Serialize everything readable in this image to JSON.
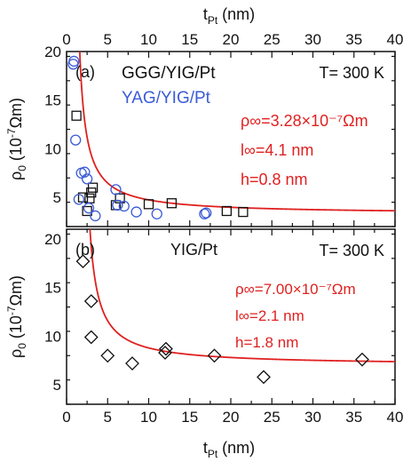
{
  "figure": {
    "top_axis_label": "t",
    "top_axis_label_sub": "Pt",
    "top_axis_label_unit": " (nm)",
    "bottom_axis_label": "t",
    "bottom_axis_label_sub": "Pt",
    "bottom_axis_label_unit": " (nm)"
  },
  "chart_data": [
    {
      "type": "scatter",
      "panel_label": "(a)",
      "temperature_label": "T= 300 K",
      "ylabel_main": "ρ",
      "ylabel_sub": "0",
      "ylabel_unit_pre": " (10",
      "ylabel_unit_exp": "-7",
      "ylabel_unit_post": "Ωm)",
      "xlim": [
        0,
        40
      ],
      "ylim": [
        2,
        20
      ],
      "xticks": [
        0,
        5,
        10,
        15,
        20,
        25,
        30,
        35,
        40
      ],
      "yticks": [
        5,
        10,
        15,
        20
      ],
      "fit_params": {
        "rho_inf_label": "ρ∞=3.28×10⁻⁷Ωm",
        "l_inf_label": "l∞=4.1 nm",
        "h_label": "h=0.8 nm",
        "rho_inf": 3.28,
        "l_inf": 4.1,
        "h": 0.8
      },
      "fit_color": "#e02020",
      "series": [
        {
          "name": "GGG/YIG/Pt",
          "marker": "square",
          "color": "#111111",
          "x": [
            1.2,
            2.0,
            2.5,
            2.8,
            3.0,
            3.2,
            6.0,
            6.5,
            10.0,
            12.8,
            19.5,
            21.5
          ],
          "y": [
            13.4,
            5.0,
            3.6,
            4.9,
            5.5,
            6.0,
            4.2,
            4.9,
            4.3,
            4.4,
            3.6,
            3.5
          ]
        },
        {
          "name": "YAG/YIG/Pt",
          "marker": "circle",
          "color": "#3b5bd6",
          "x": [
            0.8,
            0.9,
            1.1,
            1.5,
            1.8,
            2.2,
            2.5,
            2.7,
            3.5,
            6.0,
            6.2,
            7.0,
            8.5,
            11.0,
            16.8,
            17.0
          ],
          "y": [
            18.7,
            19.0,
            10.9,
            4.8,
            7.5,
            7.6,
            6.9,
            3.9,
            3.1,
            5.8,
            4.2,
            4.1,
            3.5,
            3.3,
            3.3,
            3.4
          ]
        }
      ]
    },
    {
      "type": "scatter",
      "panel_label": "(b)",
      "legend_text": "YIG/Pt",
      "temperature_label": "T= 300 K",
      "ylabel_main": "ρ",
      "ylabel_sub": "0",
      "ylabel_unit_pre": " (10",
      "ylabel_unit_exp": "-7",
      "ylabel_unit_post": "Ωm)",
      "xlabel": "t_Pt (nm)",
      "xlim": [
        0,
        40
      ],
      "ylim": [
        3,
        21
      ],
      "xticks": [
        0,
        5,
        10,
        15,
        20,
        25,
        30,
        35,
        40
      ],
      "yticks": [
        5,
        10,
        15,
        20
      ],
      "fit_params": {
        "rho_inf_label": "ρ∞=7.00×10⁻⁷Ωm",
        "l_inf_label": "l∞=2.1 nm",
        "h_label": "h=1.8 nm",
        "rho_inf": 7.0,
        "l_inf": 2.1,
        "h": 1.8
      },
      "fit_color": "#e02020",
      "series": [
        {
          "name": "YIG/Pt",
          "marker": "diamond",
          "color": "#111111",
          "x": [
            2.0,
            3.0,
            3.0,
            5.0,
            8.0,
            12.0,
            12.1,
            18.0,
            24.0,
            36.0
          ],
          "y": [
            17.7,
            13.6,
            9.9,
            8.0,
            7.2,
            8.3,
            8.7,
            8.0,
            5.8,
            7.6
          ]
        }
      ]
    }
  ]
}
